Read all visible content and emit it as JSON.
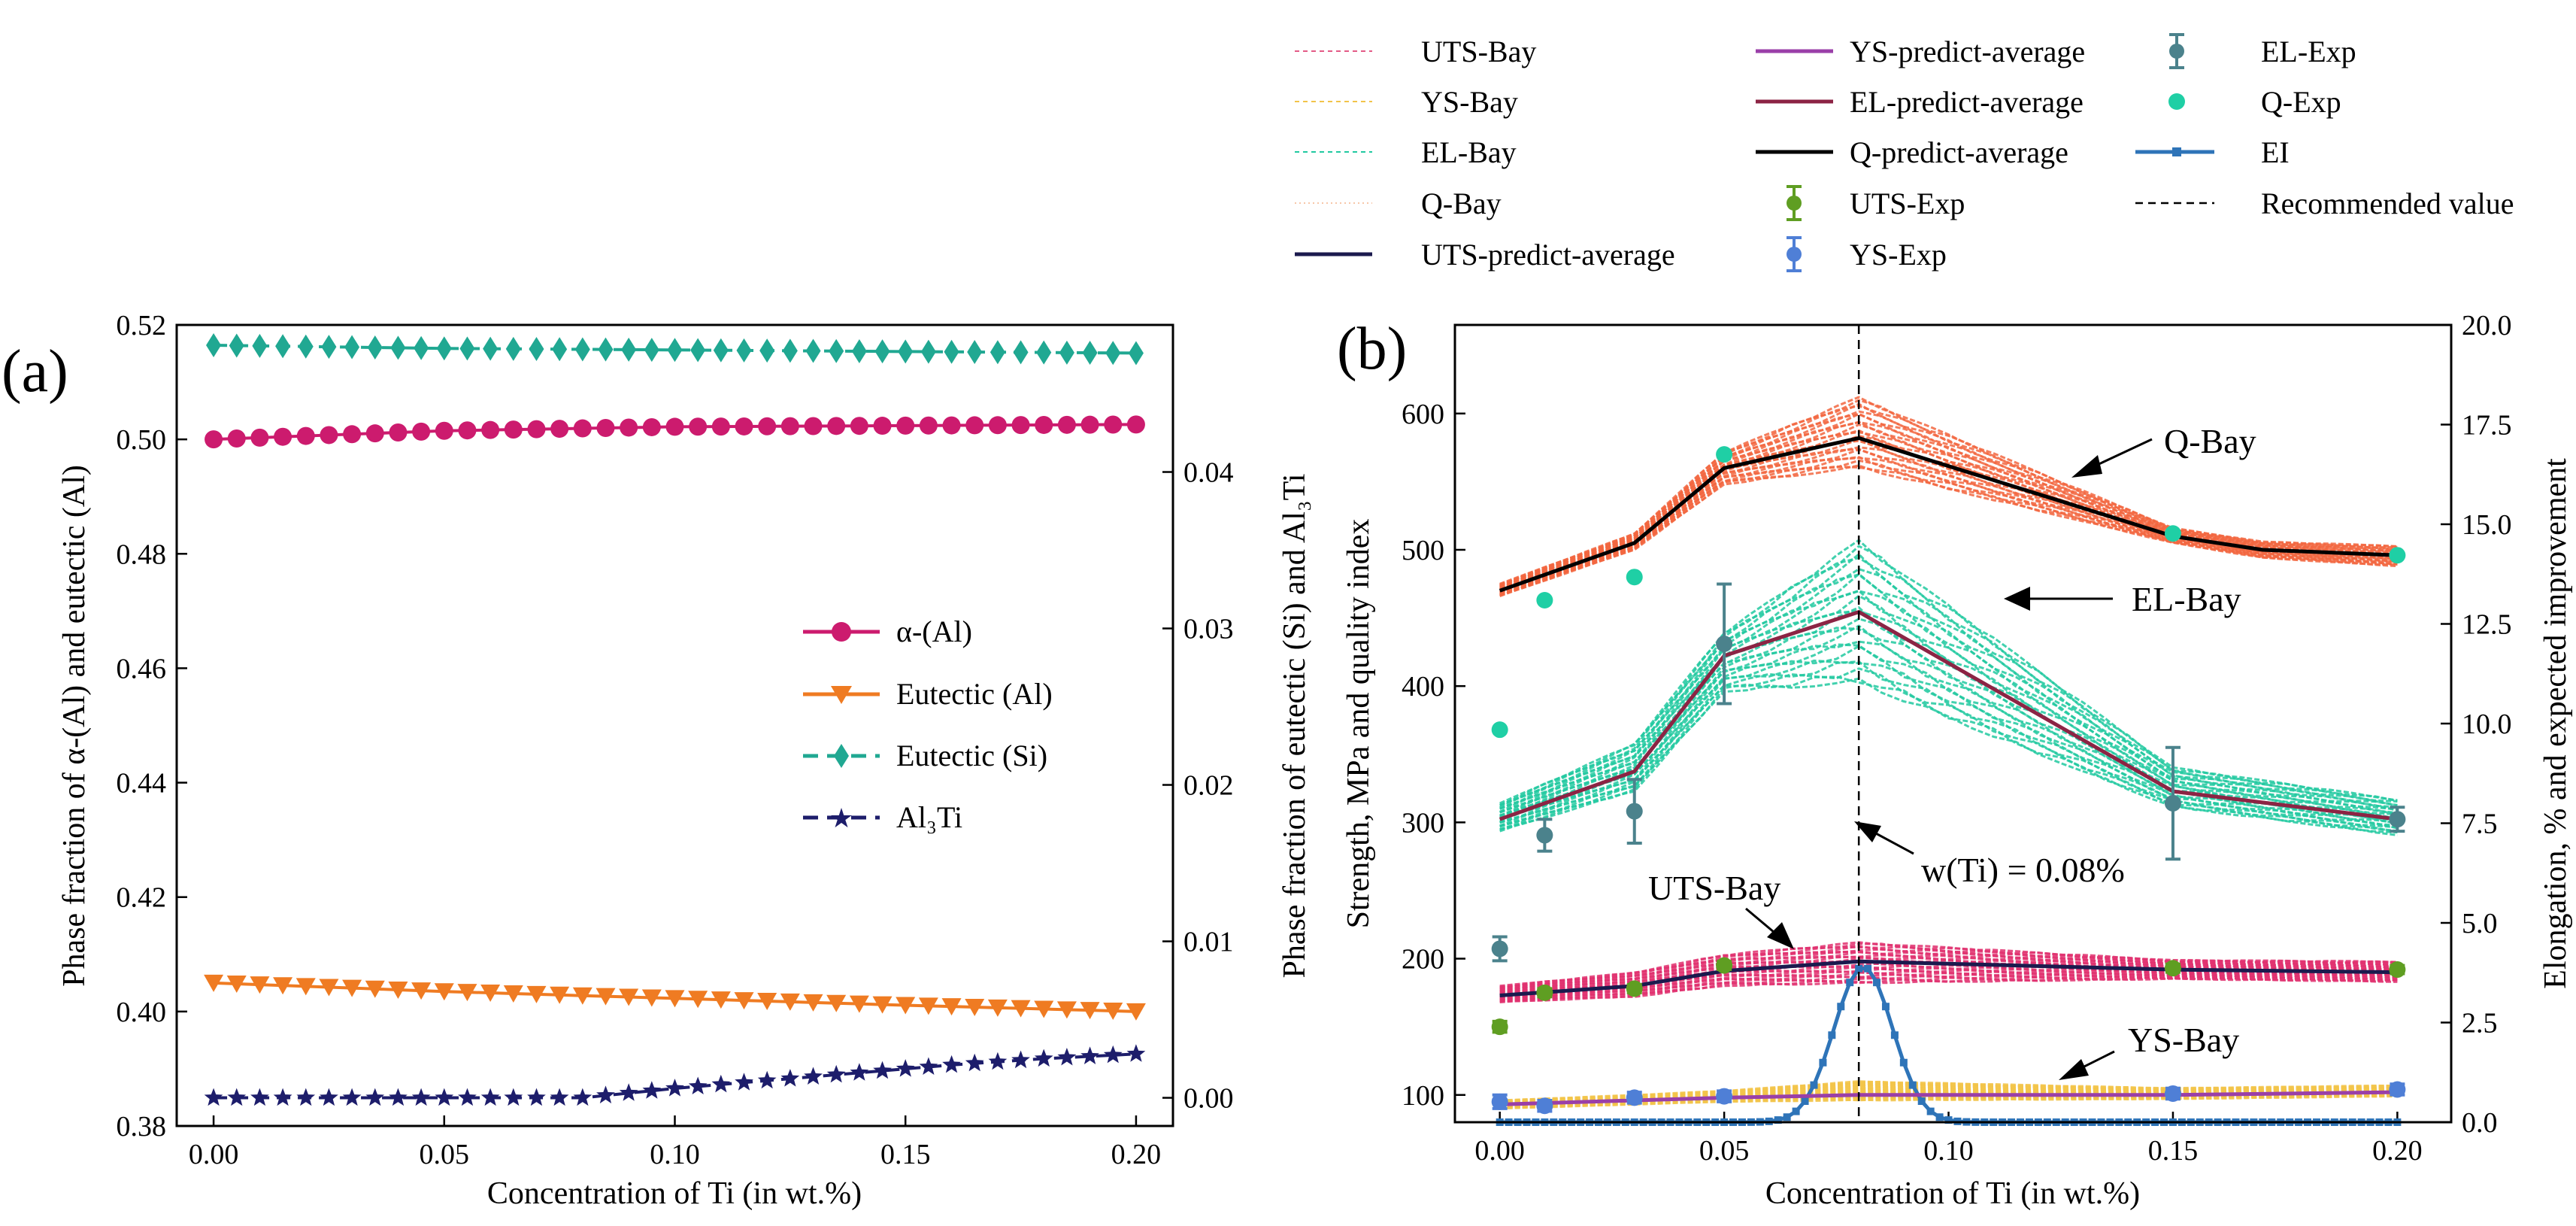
{
  "panel_a": {
    "label": "(a)",
    "xlabel": "Concentration of Ti (in wt.%)",
    "ylabel_left": "Phase fraction of α-(Al) and eutectic (Al)",
    "ylabel_right": "Phase fraction of eutectic (Si) and Al₃Ti"
  },
  "panel_b": {
    "label": "(b)",
    "xlabel": "Concentration of Ti (in wt.%)",
    "ylabel_left": "Strength, MPa and quality index",
    "ylabel_right": "Elongation, % and expected improvement",
    "annotations": {
      "q_bay": "Q-Bay",
      "el_bay": "EL-Bay",
      "uts_bay": "UTS-Bay",
      "ys_bay": "YS-Bay",
      "recommended": "w(Ti) = 0.08%"
    }
  },
  "legend_b": [
    {
      "label": "UTS-Bay",
      "color": "#e35a86",
      "style": "dashed-thin"
    },
    {
      "label": "YS-Bay",
      "color": "#f2c44a",
      "style": "dashed-thin"
    },
    {
      "label": "EL-Bay",
      "color": "#21c9a0",
      "style": "dashed-thin"
    },
    {
      "label": "Q-Bay",
      "color": "#f7c6a8",
      "style": "dotted-thin"
    },
    {
      "label": "UTS-predict-average",
      "color": "#1b1a4e",
      "style": "solid"
    },
    {
      "label": "YS-predict-average",
      "color": "#9a3fa8",
      "style": "solid"
    },
    {
      "label": "EL-predict-average",
      "color": "#8c2444",
      "style": "solid"
    },
    {
      "label": "Q-predict-average",
      "color": "#000000",
      "style": "solid"
    },
    {
      "label": "UTS-Exp",
      "color": "#5f9e22",
      "style": "errorbar"
    },
    {
      "label": "YS-Exp",
      "color": "#4f7fd6",
      "style": "errorbar"
    },
    {
      "label": "EL-Exp",
      "color": "#4b828c",
      "style": "errorbar"
    },
    {
      "label": "Q-Exp",
      "color": "#1fcfa5",
      "style": "dot"
    },
    {
      "label": "EI",
      "color": "#2e74b8",
      "style": "line-square"
    },
    {
      "label": "Recommended value",
      "color": "#000000",
      "style": "dashed-black"
    }
  ],
  "chart_data": [
    {
      "type": "line",
      "title": "",
      "xlabel": "Concentration of Ti (in wt.%)",
      "ylabel": "Phase fraction of α-(Al) and eutectic (Al)",
      "y2label": "Phase fraction of eutectic (Si) and Al₃Ti",
      "xlim": [
        -0.008,
        0.208
      ],
      "ylim": [
        0.38,
        0.52
      ],
      "y2lim": [
        -0.0018,
        0.0494
      ],
      "xticks": [
        "0.00",
        "0.05",
        "0.10",
        "0.15",
        "0.20"
      ],
      "yticks": [
        "0.38",
        "0.40",
        "0.42",
        "0.44",
        "0.46",
        "0.48",
        "0.50",
        "0.52"
      ],
      "y2ticks": [
        "0.00",
        "0.01",
        "0.02",
        "0.03",
        "0.04"
      ],
      "legend_position": "center-right",
      "series": [
        {
          "name": "α-(Al)",
          "axis": "left",
          "color": "#cc1b6e",
          "marker": "circle",
          "linestyle": "solid",
          "x": [
            0.0,
            0.05,
            0.1,
            0.15,
            0.2
          ],
          "y": [
            0.5,
            0.5015,
            0.5022,
            0.5024,
            0.5026
          ]
        },
        {
          "name": "Eutectic (Al)",
          "axis": "left",
          "color": "#ef7b22",
          "marker": "triangle-down",
          "linestyle": "solid",
          "x": [
            0.0,
            0.05,
            0.1,
            0.15,
            0.2
          ],
          "y": [
            0.405,
            0.4035,
            0.4023,
            0.4011,
            0.4
          ]
        },
        {
          "name": "Eutectic (Si)",
          "axis": "right",
          "color": "#20a892",
          "marker": "diamond",
          "linestyle": "dashed",
          "x": [
            0.0,
            0.05,
            0.1,
            0.15,
            0.2
          ],
          "y": [
            0.0481,
            0.0479,
            0.0478,
            0.0477,
            0.0476
          ]
        },
        {
          "name": "Al₃Ti",
          "axis": "right",
          "color": "#1d1d6b",
          "marker": "star",
          "linestyle": "dashed",
          "x": [
            0.0,
            0.03,
            0.06,
            0.08,
            0.1,
            0.12,
            0.14,
            0.16,
            0.18,
            0.2
          ],
          "y": [
            0.0,
            0.0,
            0.0,
            0.0,
            0.0006,
            0.0011,
            0.0016,
            0.0021,
            0.0025,
            0.0028
          ]
        }
      ]
    },
    {
      "type": "line",
      "title": "",
      "xlabel": "Concentration of Ti (in wt.%)",
      "ylabel": "Strength, MPa and quality index",
      "y2label": "Elongation, % and expected improvement",
      "xlim": [
        -0.01,
        0.212
      ],
      "ylim": [
        80,
        665
      ],
      "y2lim": [
        0,
        20
      ],
      "xticks": [
        "0.00",
        "0.05",
        "0.10",
        "0.15",
        "0.20"
      ],
      "yticks": [
        "100",
        "200",
        "300",
        "400",
        "500",
        "600"
      ],
      "y2ticks": [
        "0.0",
        "2.5",
        "5.0",
        "7.5",
        "10.0",
        "12.5",
        "15.0",
        "17.5",
        "20.0"
      ],
      "recommended_x": 0.08,
      "averages": [
        {
          "name": "Q-predict-average",
          "axis": "left",
          "color": "#000000",
          "x": [
            0.0,
            0.03,
            0.05,
            0.08,
            0.15,
            0.17,
            0.2
          ],
          "y": [
            470,
            505,
            560,
            582,
            510,
            500,
            496
          ]
        },
        {
          "name": "EL-predict-average",
          "axis": "right",
          "color": "#8c2444",
          "x": [
            0.0,
            0.03,
            0.05,
            0.08,
            0.15,
            0.2
          ],
          "y": [
            7.6,
            8.8,
            11.7,
            12.8,
            8.3,
            7.6
          ]
        },
        {
          "name": "UTS-predict-average",
          "axis": "left",
          "color": "#1b1a4e",
          "x": [
            0.0,
            0.03,
            0.05,
            0.08,
            0.15,
            0.2
          ],
          "y": [
            173,
            180,
            191,
            198,
            192,
            190
          ]
        },
        {
          "name": "YS-predict-average",
          "axis": "left",
          "color": "#9a3fa8",
          "x": [
            0.0,
            0.03,
            0.05,
            0.08,
            0.15,
            0.2
          ],
          "y": [
            93,
            96,
            98,
            100,
            100,
            102
          ]
        }
      ],
      "bay_bands": [
        {
          "name": "Q-Bay",
          "axis": "left",
          "color": "#f26640",
          "x": [
            0.0,
            0.03,
            0.05,
            0.08,
            0.15,
            0.17,
            0.2
          ],
          "lower": [
            466,
            500,
            548,
            560,
            505,
            494,
            488
          ],
          "upper": [
            475,
            512,
            572,
            612,
            516,
            506,
            503
          ]
        },
        {
          "name": "EL-Bay",
          "axis": "right",
          "color": "#21c9a0",
          "x": [
            0.0,
            0.03,
            0.05,
            0.08,
            0.15,
            0.2
          ],
          "lower": [
            7.3,
            8.3,
            10.8,
            11.0,
            7.9,
            7.2
          ],
          "upper": [
            8.0,
            9.5,
            12.3,
            14.6,
            8.9,
            8.1
          ]
        },
        {
          "name": "UTS-Bay",
          "axis": "left",
          "color": "#e0306f",
          "x": [
            0.0,
            0.03,
            0.05,
            0.08,
            0.15,
            0.2
          ],
          "lower": [
            168,
            172,
            180,
            182,
            185,
            183
          ],
          "upper": [
            180,
            190,
            203,
            212,
            199,
            198
          ]
        },
        {
          "name": "YS-Bay",
          "axis": "left",
          "color": "#f2c44a",
          "x": [
            0.0,
            0.03,
            0.05,
            0.08,
            0.15,
            0.2
          ],
          "lower": [
            90,
            93,
            95,
            96,
            97,
            99
          ],
          "upper": [
            96,
            100,
            103,
            110,
            105,
            107
          ]
        }
      ],
      "experiments": [
        {
          "name": "UTS-Exp",
          "axis": "left",
          "color": "#5f9e22",
          "marker": "circle",
          "x": [
            0.0,
            0.01,
            0.03,
            0.05,
            0.15,
            0.2
          ],
          "y": [
            150,
            175,
            178,
            195,
            193,
            192
          ],
          "err": [
            4,
            3,
            3,
            3,
            3,
            3
          ]
        },
        {
          "name": "YS-Exp",
          "axis": "left",
          "color": "#4f7fd6",
          "marker": "circle",
          "x": [
            0.0,
            0.01,
            0.03,
            0.05,
            0.15,
            0.2
          ],
          "y": [
            95,
            92,
            98,
            99,
            101,
            104
          ],
          "err": [
            5,
            4,
            4,
            4,
            4,
            4
          ]
        },
        {
          "name": "EL-Exp",
          "axis": "right",
          "color": "#4b828c",
          "marker": "circle",
          "x": [
            0.0,
            0.01,
            0.03,
            0.05,
            0.15,
            0.2
          ],
          "y": [
            4.35,
            7.2,
            7.8,
            12.0,
            8.0,
            7.6
          ],
          "err": [
            0.3,
            0.4,
            0.8,
            1.5,
            1.4,
            0.3
          ]
        },
        {
          "name": "Q-Exp",
          "axis": "left",
          "color": "#1fcfa5",
          "marker": "circle",
          "x": [
            0.0,
            0.01,
            0.03,
            0.05,
            0.15,
            0.2
          ],
          "y": [
            368,
            463,
            480,
            570,
            512,
            496
          ],
          "err": [
            0,
            0,
            0,
            0,
            0,
            0
          ]
        }
      ],
      "ei": {
        "name": "EI",
        "axis": "right",
        "color": "#2e74b8",
        "center": 0.081,
        "peak": 3.9,
        "sigma": 0.0065
      }
    }
  ]
}
